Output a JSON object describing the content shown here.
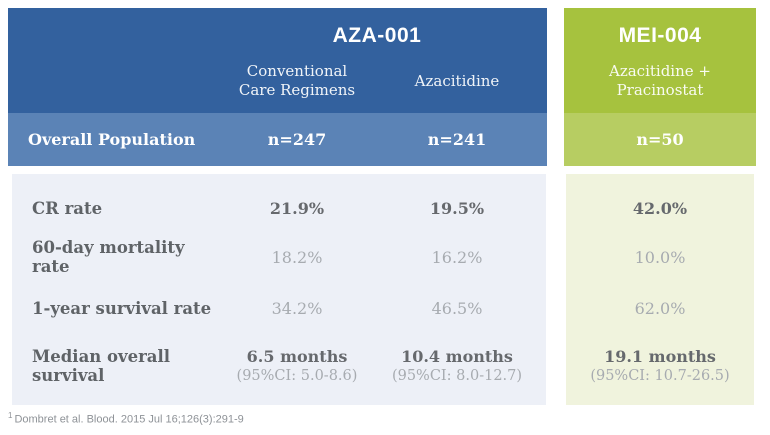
{
  "chart_data": {
    "type": "table",
    "groups": [
      {
        "title": "AZA-001",
        "columns": [
          {
            "line1": "Conventional",
            "line2": "Care Regimens"
          },
          {
            "line1": "Azacitidine",
            "line2": ""
          }
        ],
        "n": [
          "n=247",
          "n=241"
        ]
      },
      {
        "title": "MEI-004",
        "columns": [
          {
            "line1": "Azacitidine +",
            "line2": "Pracinostat"
          }
        ],
        "n": [
          "n=50"
        ]
      }
    ],
    "row_header_label": "Overall Population",
    "rows": [
      {
        "metric": "CR rate",
        "emphasis": "bold",
        "values": [
          {
            "main": "21.9%"
          },
          {
            "main": "19.5%"
          },
          {
            "main": "42.0%"
          }
        ]
      },
      {
        "metric": "60-day mortality rate",
        "emphasis": "light",
        "values": [
          {
            "main": "18.2%"
          },
          {
            "main": "16.2%"
          },
          {
            "main": "10.0%"
          }
        ]
      },
      {
        "metric": "1-year survival rate",
        "emphasis": "light",
        "values": [
          {
            "main": "34.2%"
          },
          {
            "main": "46.5%"
          },
          {
            "main": "62.0%"
          }
        ]
      },
      {
        "metric": "Median overall survival",
        "emphasis": "bold",
        "values": [
          {
            "main": "6.5 months",
            "ci": "(95%CI: 5.0-8.6)"
          },
          {
            "main": "10.4 months",
            "ci": "(95%CI: 8.0-12.7)"
          },
          {
            "main": "19.1 months",
            "ci": "(95%CI: 10.7-26.5)"
          }
        ]
      }
    ],
    "footnote": {
      "marker": "1",
      "text": "Dombret et al. Blood. 2015 Jul 16;126(3):291-9"
    }
  },
  "colors": {
    "aza_header": "#33619E",
    "aza_overall_row": "#5B83B6",
    "aza_body": "#EDF0F7",
    "mei_header": "#A6C23E",
    "mei_overall_row": "#B7CD62",
    "mei_body": "#F0F3DD",
    "header_text": "#FFFFFF",
    "label_text": "#5F6367",
    "value_bold_text": "#66696D",
    "value_light_text": "#A7ABB0",
    "footnote_text": "#8E9297"
  }
}
